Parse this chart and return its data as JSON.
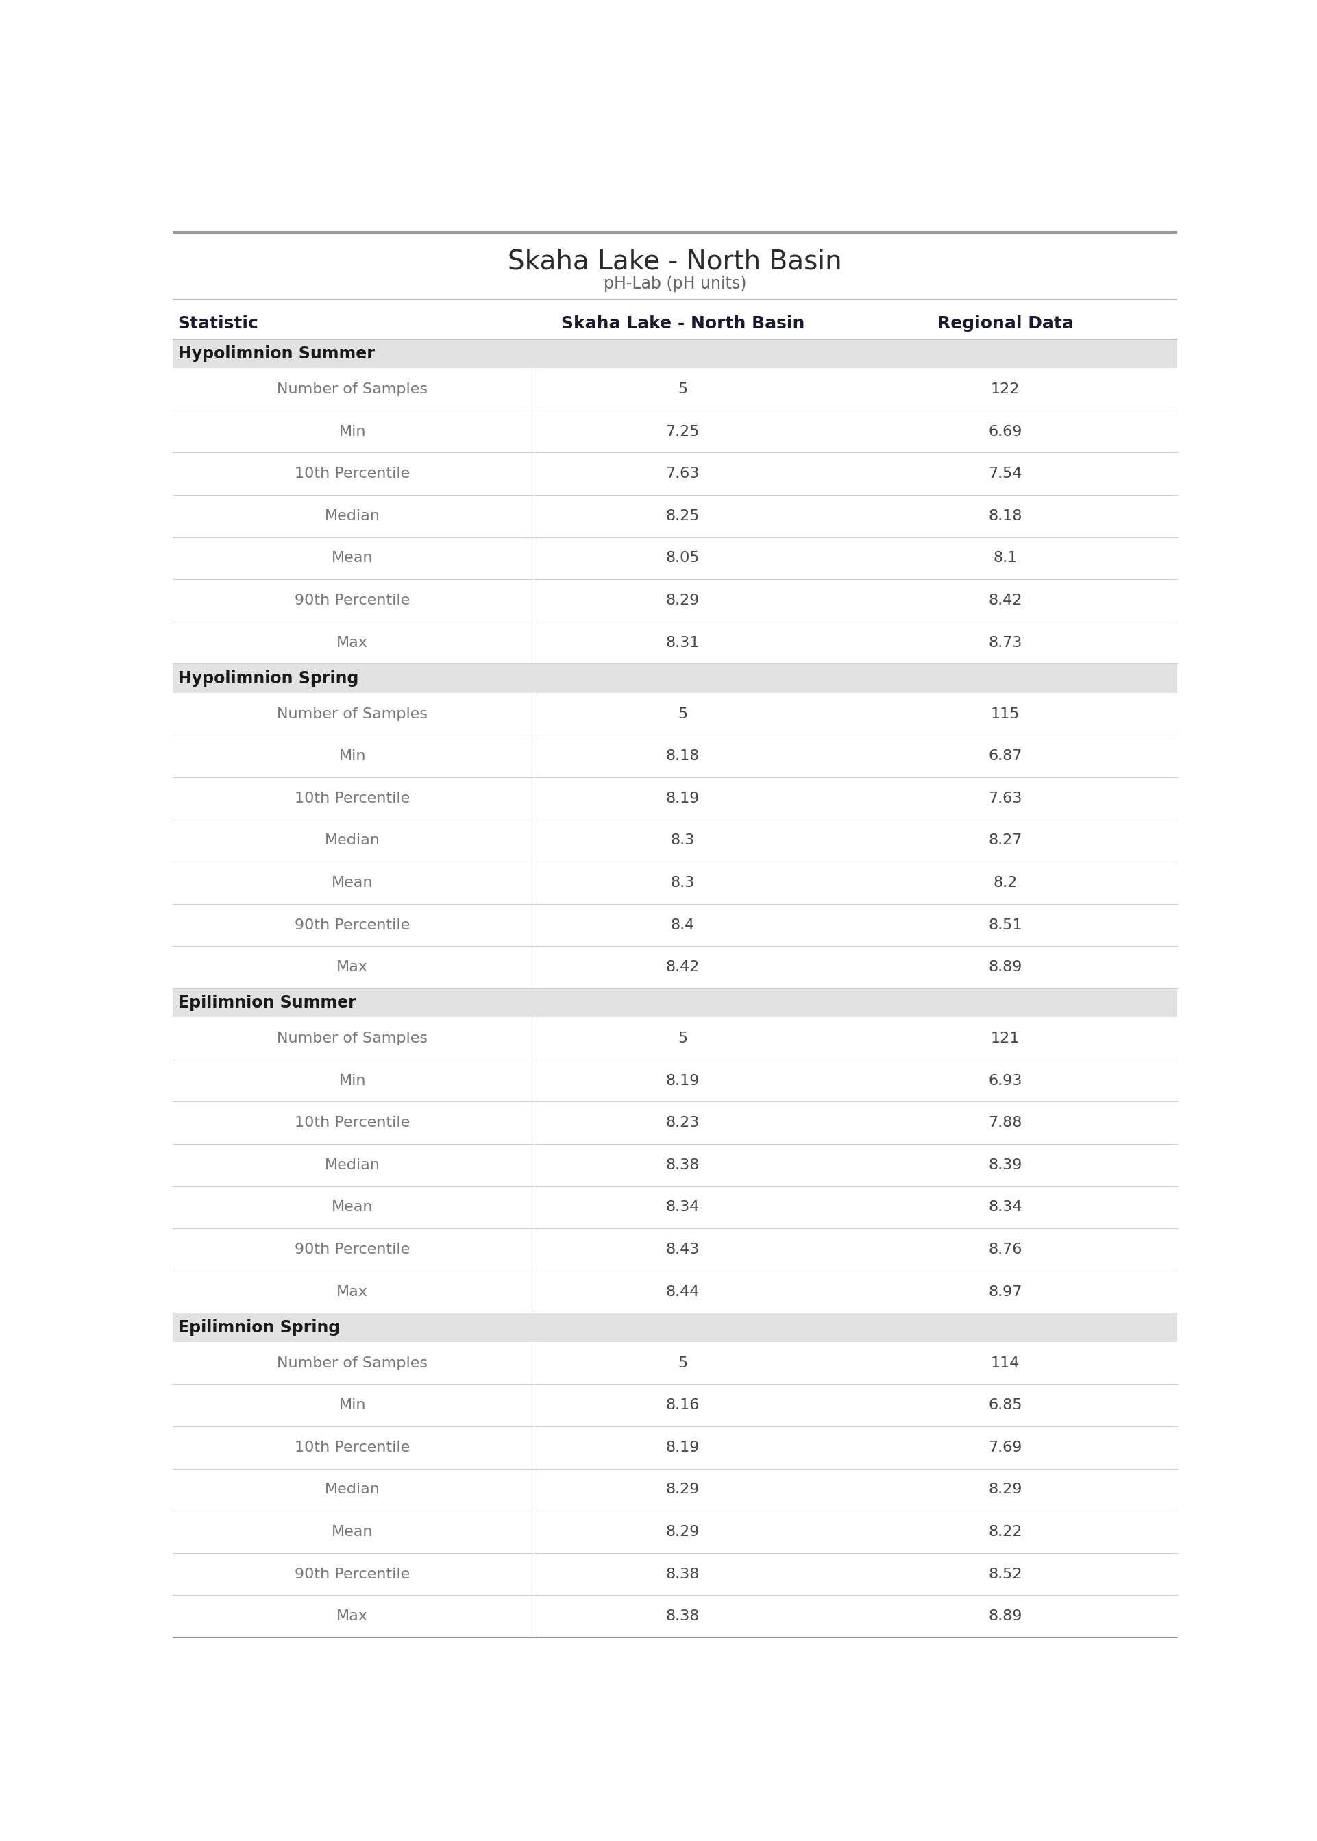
{
  "title": "Skaha Lake - North Basin",
  "subtitle": "pH-Lab (pH units)",
  "col_headers": [
    "Statistic",
    "Skaha Lake - North Basin",
    "Regional Data"
  ],
  "sections": [
    {
      "label": "Hypolimnion Summer",
      "rows": [
        [
          "Number of Samples",
          "5",
          "122"
        ],
        [
          "Min",
          "7.25",
          "6.69"
        ],
        [
          "10th Percentile",
          "7.63",
          "7.54"
        ],
        [
          "Median",
          "8.25",
          "8.18"
        ],
        [
          "Mean",
          "8.05",
          "8.1"
        ],
        [
          "90th Percentile",
          "8.29",
          "8.42"
        ],
        [
          "Max",
          "8.31",
          "8.73"
        ]
      ]
    },
    {
      "label": "Hypolimnion Spring",
      "rows": [
        [
          "Number of Samples",
          "5",
          "115"
        ],
        [
          "Min",
          "8.18",
          "6.87"
        ],
        [
          "10th Percentile",
          "8.19",
          "7.63"
        ],
        [
          "Median",
          "8.3",
          "8.27"
        ],
        [
          "Mean",
          "8.3",
          "8.2"
        ],
        [
          "90th Percentile",
          "8.4",
          "8.51"
        ],
        [
          "Max",
          "8.42",
          "8.89"
        ]
      ]
    },
    {
      "label": "Epilimnion Summer",
      "rows": [
        [
          "Number of Samples",
          "5",
          "121"
        ],
        [
          "Min",
          "8.19",
          "6.93"
        ],
        [
          "10th Percentile",
          "8.23",
          "7.88"
        ],
        [
          "Median",
          "8.38",
          "8.39"
        ],
        [
          "Mean",
          "8.34",
          "8.34"
        ],
        [
          "90th Percentile",
          "8.43",
          "8.76"
        ],
        [
          "Max",
          "8.44",
          "8.97"
        ]
      ]
    },
    {
      "label": "Epilimnion Spring",
      "rows": [
        [
          "Number of Samples",
          "5",
          "114"
        ],
        [
          "Min",
          "8.16",
          "6.85"
        ],
        [
          "10th Percentile",
          "8.19",
          "7.69"
        ],
        [
          "Median",
          "8.29",
          "8.29"
        ],
        [
          "Mean",
          "8.29",
          "8.22"
        ],
        [
          "90th Percentile",
          "8.38",
          "8.52"
        ],
        [
          "Max",
          "8.38",
          "8.89"
        ]
      ]
    }
  ],
  "colors": {
    "title_text": "#2b2b2b",
    "subtitle_text": "#666666",
    "section_bg": "#e2e2e2",
    "section_text": "#1a1a1a",
    "row_bg": "#ffffff",
    "statistic_text": "#777777",
    "value_text": "#444444",
    "divider_line": "#d0d0d0",
    "top_border": "#999999",
    "col_header_text": "#1a1a2e",
    "header_divider": "#bbbbbb"
  },
  "font_sizes": {
    "title": 28,
    "subtitle": 17,
    "col_header": 18,
    "section_label": 17,
    "row_text": 16
  },
  "col_split1": 0.36,
  "col_split2": 0.655
}
